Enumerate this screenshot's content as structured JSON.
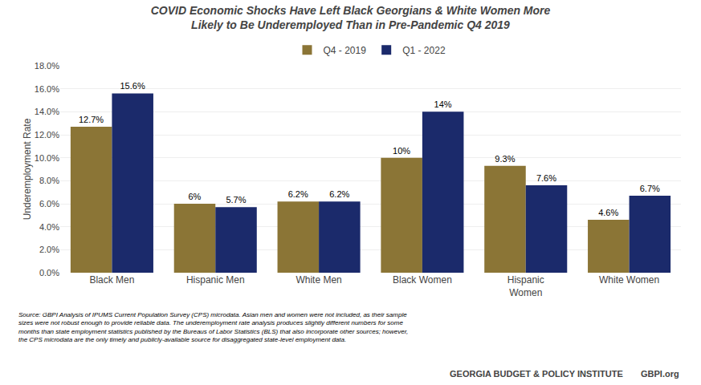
{
  "chart_data": {
    "type": "bar",
    "title": "COVID Economic Shocks Have Left Black Georgians & White Women More\nLikely to Be Underemployed Than in Pre-Pandemic Q4 2019",
    "categories": [
      "Black Men",
      "Hispanic Men",
      "White Men",
      "Black Women",
      "Hispanic\nWomen",
      "White Women"
    ],
    "series": [
      {
        "name": "Q4 - 2019",
        "color": "#8B7536",
        "values": [
          0.127,
          0.06,
          0.062,
          0.1,
          0.093,
          0.046
        ],
        "value_labels": [
          "12.7%",
          "6%",
          "6.2%",
          "10%",
          "9.3%",
          "4.6%"
        ]
      },
      {
        "name": "Q1 - 2022",
        "color": "#1B2A6B",
        "values": [
          0.156,
          0.057,
          0.062,
          0.14,
          0.076,
          0.067
        ],
        "value_labels": [
          "15.6%",
          "5.7%",
          "6.2%",
          "14%",
          "7.6%",
          "6.7%"
        ]
      }
    ],
    "ylabel": "Underemployment Rate",
    "ylim": [
      0,
      0.18
    ],
    "yticks": [
      {
        "value": 0.0,
        "label": "0.0%"
      },
      {
        "value": 0.02,
        "label": "2.0%"
      },
      {
        "value": 0.04,
        "label": "4.0%"
      },
      {
        "value": 0.06,
        "label": "6.0%"
      },
      {
        "value": 0.08,
        "label": "8.0%"
      },
      {
        "value": 0.1,
        "label": "10.0%"
      },
      {
        "value": 0.12,
        "label": "12.0%"
      },
      {
        "value": 0.14,
        "label": "14.0%"
      },
      {
        "value": 0.16,
        "label": "16.0%"
      },
      {
        "value": 0.18,
        "label": "18.0%"
      }
    ],
    "grid": true,
    "legend": "top",
    "data_labels": true,
    "annotations": [
      "Source: GBPI Analysis of IPUMS Current Population Survey (CPS) microdata. Asian men and women were not included, as their sample\nsizes were not robust enough to provide reliable data. The underemployment rate analysis produces slightly different numbers for some\nmonths than state employment statistics published by the Bureaus of Labor Statistics (BLS) that also incorporate other sources; however,\nthe CPS microdata are the only timely and publicly-available source for disaggregated state-level employment data.",
      "GEORGIA BUDGET & POLICY INSTITUTE",
      "GBPI.org"
    ]
  }
}
